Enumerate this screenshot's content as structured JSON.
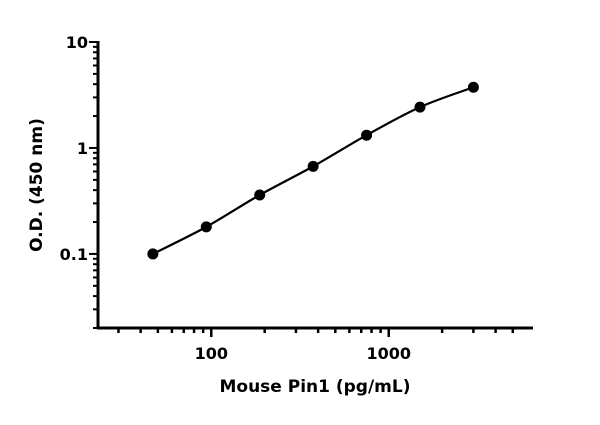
{
  "chart_data": {
    "type": "line",
    "title": "",
    "xlabel": "Mouse Pin1 (pg/mL)",
    "ylabel": "O.D. (450 nm)",
    "x_scale": "log",
    "y_scale": "log",
    "xlim": [
      23,
      6500
    ],
    "ylim": [
      0.02,
      10
    ],
    "x_ticks": [
      {
        "value": 100,
        "label": "100"
      },
      {
        "value": 1000,
        "label": "1000"
      }
    ],
    "y_ticks": [
      {
        "value": 0.1,
        "label": "0.1"
      },
      {
        "value": 1,
        "label": "1"
      },
      {
        "value": 10,
        "label": "10"
      }
    ],
    "grid": false,
    "series": [
      {
        "x": [
          46.875,
          93.75,
          187.5,
          375,
          750,
          1500,
          3000
        ],
        "y": [
          0.1,
          0.18,
          0.36,
          0.67,
          1.32,
          2.43,
          3.74
        ],
        "color": "#000000",
        "marker": "circle",
        "fit_curve": true
      }
    ]
  }
}
